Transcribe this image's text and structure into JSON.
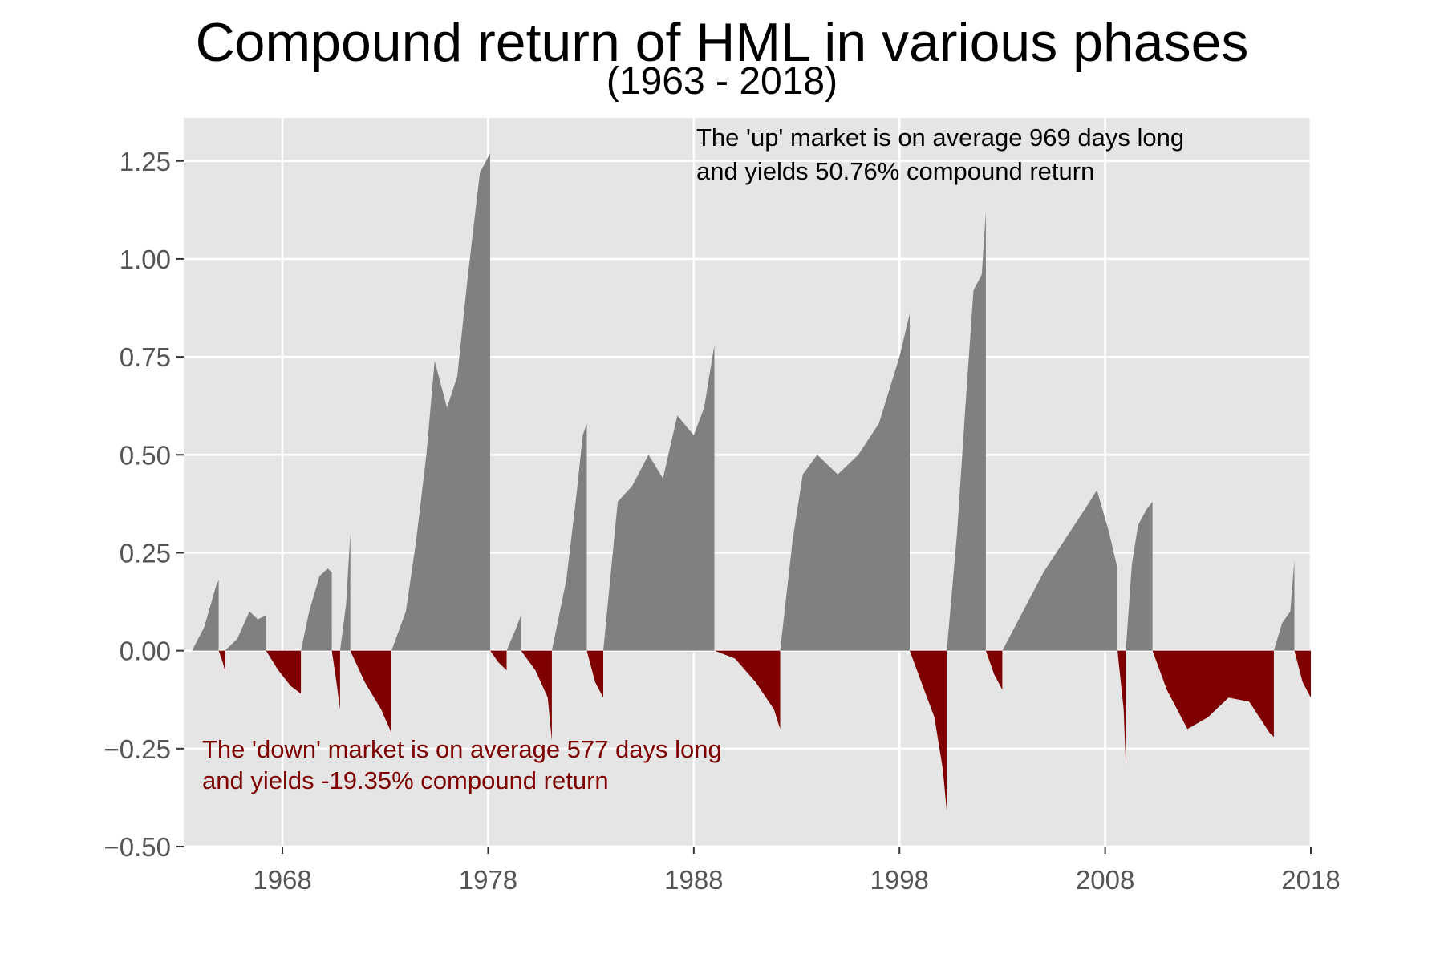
{
  "chart_data": {
    "type": "area",
    "title": "Compound return of HML in various phases",
    "subtitle": "(1963 - 2018)",
    "xlabel": "",
    "ylabel": "",
    "xlim": [
      1963.2,
      2018.0
    ],
    "ylim": [
      -0.5,
      1.36
    ],
    "x_ticks": [
      1968,
      1978,
      1988,
      1998,
      2008,
      2018
    ],
    "x_tick_labels": [
      "1968",
      "1978",
      "1988",
      "1998",
      "2008",
      "2018"
    ],
    "y_ticks": [
      -0.5,
      -0.25,
      0.0,
      0.25,
      0.5,
      0.75,
      1.0,
      1.25
    ],
    "y_tick_labels": [
      "−0.50",
      "−0.25",
      "0.00",
      "0.25",
      "0.50",
      "0.75",
      "1.00",
      "1.25"
    ],
    "grid": true,
    "colors": {
      "up": "#808080",
      "down": "#7f0000",
      "panel": "#e5e5e5",
      "grid": "#ffffff"
    },
    "annotations": {
      "up_line1": "The 'up' market is on average 969 days long",
      "up_line2": "and yields 50.76% compound return",
      "down_line1": "The 'down' market is on average 577 days long",
      "down_line2": "and yields -19.35% compound return"
    },
    "series": [
      {
        "kind": "up",
        "x": [
          1963.6,
          1964.2,
          1964.8,
          1964.9
        ],
        "y": [
          0.0,
          0.06,
          0.17,
          0.18
        ]
      },
      {
        "kind": "down",
        "x": [
          1964.9,
          1965.1,
          1965.2
        ],
        "y": [
          0.0,
          -0.03,
          -0.05
        ]
      },
      {
        "kind": "up",
        "x": [
          1965.2,
          1965.8,
          1966.4,
          1966.8,
          1967.2
        ],
        "y": [
          0.0,
          0.03,
          0.1,
          0.08,
          0.09
        ]
      },
      {
        "kind": "down",
        "x": [
          1967.2,
          1967.8,
          1968.4,
          1968.9
        ],
        "y": [
          0.0,
          -0.05,
          -0.09,
          -0.11
        ]
      },
      {
        "kind": "up",
        "x": [
          1968.9,
          1969.3,
          1969.8,
          1970.2,
          1970.4
        ],
        "y": [
          0.0,
          0.1,
          0.19,
          0.21,
          0.2
        ]
      },
      {
        "kind": "down",
        "x": [
          1970.4,
          1970.6,
          1970.8
        ],
        "y": [
          0.0,
          -0.07,
          -0.15
        ]
      },
      {
        "kind": "up",
        "x": [
          1970.8,
          1971.1,
          1971.3
        ],
        "y": [
          0.0,
          0.12,
          0.3
        ]
      },
      {
        "kind": "down",
        "x": [
          1971.3,
          1972.0,
          1972.8,
          1973.3
        ],
        "y": [
          0.0,
          -0.08,
          -0.15,
          -0.21
        ]
      },
      {
        "kind": "up",
        "x": [
          1973.3,
          1974.0,
          1974.5,
          1975.0,
          1975.4,
          1976.0,
          1976.5,
          1977.0,
          1977.6,
          1978.1
        ],
        "y": [
          0.0,
          0.1,
          0.28,
          0.5,
          0.74,
          0.62,
          0.7,
          0.95,
          1.22,
          1.27
        ]
      },
      {
        "kind": "down",
        "x": [
          1978.1,
          1978.5,
          1978.9
        ],
        "y": [
          0.0,
          -0.03,
          -0.05
        ]
      },
      {
        "kind": "up",
        "x": [
          1978.9,
          1979.3,
          1979.6
        ],
        "y": [
          0.0,
          0.05,
          0.09
        ]
      },
      {
        "kind": "down",
        "x": [
          1979.6,
          1980.3,
          1980.9,
          1981.1
        ],
        "y": [
          0.0,
          -0.05,
          -0.12,
          -0.23
        ]
      },
      {
        "kind": "up",
        "x": [
          1981.1,
          1981.8,
          1982.3,
          1982.6,
          1982.8
        ],
        "y": [
          0.0,
          0.18,
          0.4,
          0.55,
          0.58
        ]
      },
      {
        "kind": "down",
        "x": [
          1982.8,
          1983.2,
          1983.6
        ],
        "y": [
          0.0,
          -0.08,
          -0.12
        ]
      },
      {
        "kind": "up",
        "x": [
          1983.6,
          1984.3,
          1985.0,
          1985.8,
          1986.5,
          1987.2,
          1988.0,
          1988.5,
          1989.0
        ],
        "y": [
          0.0,
          0.38,
          0.42,
          0.5,
          0.44,
          0.6,
          0.55,
          0.62,
          0.78
        ]
      },
      {
        "kind": "down",
        "x": [
          1989.0,
          1990.0,
          1991.0,
          1991.9,
          1992.2
        ],
        "y": [
          0.0,
          -0.02,
          -0.08,
          -0.15,
          -0.2
        ]
      },
      {
        "kind": "up",
        "x": [
          1992.2,
          1992.8,
          1993.3,
          1994.0,
          1995.0,
          1996.0,
          1997.0,
          1998.0,
          1998.5
        ],
        "y": [
          0.0,
          0.28,
          0.45,
          0.5,
          0.45,
          0.5,
          0.58,
          0.75,
          0.86
        ]
      },
      {
        "kind": "down",
        "x": [
          1998.5,
          1999.2,
          1999.7,
          2000.1,
          2000.3
        ],
        "y": [
          0.0,
          -0.1,
          -0.17,
          -0.3,
          -0.41
        ]
      },
      {
        "kind": "up",
        "x": [
          2000.3,
          2000.8,
          2001.2,
          2001.6,
          2002.0,
          2002.2
        ],
        "y": [
          0.0,
          0.3,
          0.62,
          0.92,
          0.96,
          1.12
        ]
      },
      {
        "kind": "down",
        "x": [
          2002.2,
          2002.6,
          2003.0
        ],
        "y": [
          0.0,
          -0.06,
          -0.1
        ]
      },
      {
        "kind": "up",
        "x": [
          2003.0,
          2004.0,
          2005.0,
          2006.0,
          2007.0,
          2007.6,
          2008.2,
          2008.6
        ],
        "y": [
          0.0,
          0.1,
          0.2,
          0.28,
          0.36,
          0.41,
          0.3,
          0.21
        ]
      },
      {
        "kind": "down",
        "x": [
          2008.6,
          2008.9,
          2009.0
        ],
        "y": [
          0.0,
          -0.15,
          -0.29
        ]
      },
      {
        "kind": "up",
        "x": [
          2009.0,
          2009.3,
          2009.6,
          2010.0,
          2010.3
        ],
        "y": [
          0.0,
          0.22,
          0.32,
          0.36,
          0.38
        ]
      },
      {
        "kind": "down",
        "x": [
          2010.3,
          2011.0,
          2012.0,
          2013.0,
          2014.0,
          2015.0,
          2016.0,
          2016.2
        ],
        "y": [
          0.0,
          -0.1,
          -0.2,
          -0.17,
          -0.12,
          -0.13,
          -0.21,
          -0.22
        ]
      },
      {
        "kind": "up",
        "x": [
          2016.2,
          2016.6,
          2017.0,
          2017.2
        ],
        "y": [
          0.0,
          0.07,
          0.1,
          0.23
        ]
      },
      {
        "kind": "down",
        "x": [
          2017.2,
          2017.6,
          2018.0
        ],
        "y": [
          0.0,
          -0.08,
          -0.12
        ]
      }
    ]
  }
}
